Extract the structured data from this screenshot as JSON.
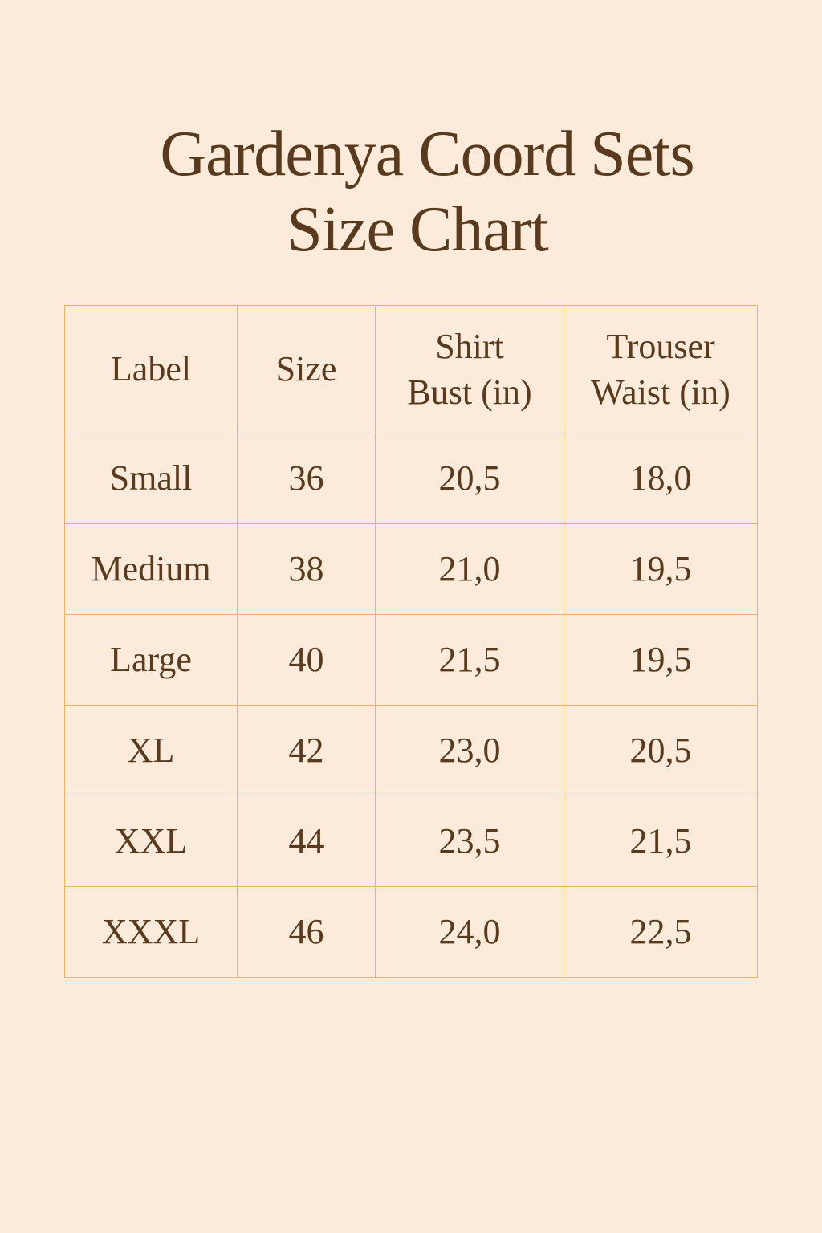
{
  "title": {
    "line1": "Gardenya Coord Sets",
    "line2": "Size Chart"
  },
  "table": {
    "headers": [
      {
        "line1": "Label"
      },
      {
        "line1": "Size"
      },
      {
        "line1": "Shirt",
        "line2": "Bust (in)"
      },
      {
        "line1": "Trouser",
        "line2": "Waist (in)"
      }
    ],
    "rows": [
      [
        "Small",
        "36",
        "20,5",
        "18,0"
      ],
      [
        "Medium",
        "38",
        "21,0",
        "19,5"
      ],
      [
        "Large",
        "40",
        "21,5",
        "19,5"
      ],
      [
        "XL",
        "42",
        "23,0",
        "20,5"
      ],
      [
        "XXL",
        "44",
        "23,5",
        "21,5"
      ],
      [
        "XXXL",
        "46",
        "24,0",
        "22,5"
      ]
    ]
  },
  "colors": {
    "background": "#fcebdb",
    "text": "#5a3a1c",
    "border": "#eab26a"
  }
}
